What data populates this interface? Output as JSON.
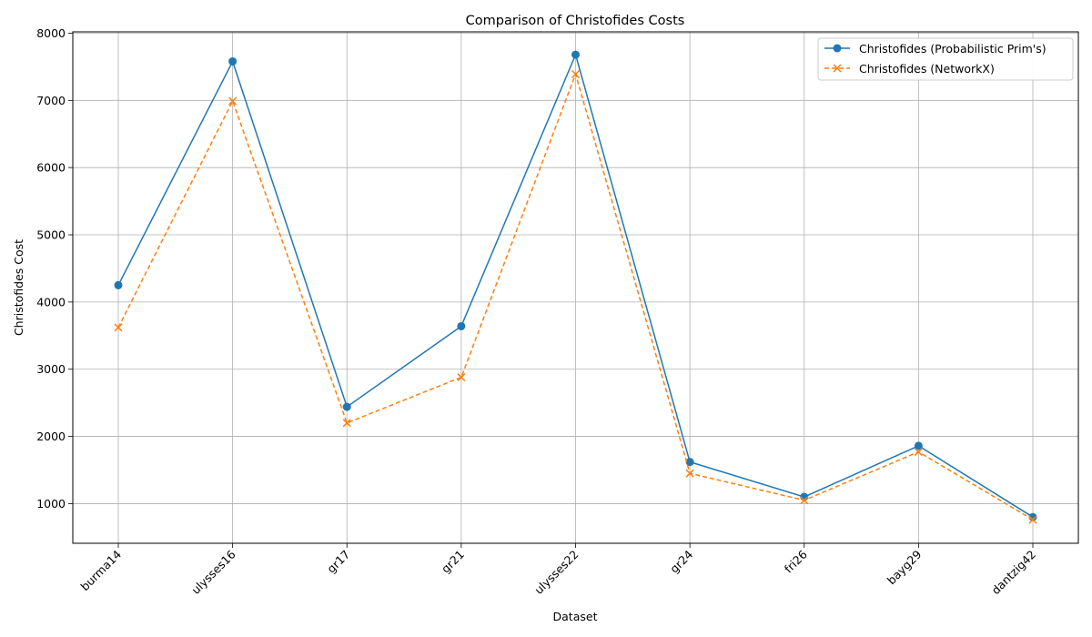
{
  "chart_data": {
    "type": "line",
    "title": "Comparison of Christofides Costs",
    "xlabel": "Dataset",
    "ylabel": "Christofides Cost",
    "categories": [
      "burma14",
      "ulysses16",
      "gr17",
      "gr21",
      "ulysses22",
      "gr24",
      "fri26",
      "bayg29",
      "dantzig42"
    ],
    "ylim": [
      410,
      8020
    ],
    "yticks": [
      1000,
      2000,
      3000,
      4000,
      5000,
      6000,
      7000,
      8000
    ],
    "grid": true,
    "legend_position": "top-right",
    "series": [
      {
        "name": "Christofides (Probabilistic Prim's)",
        "values": [
          4250,
          7580,
          2440,
          3640,
          7680,
          1620,
          1100,
          1860,
          800
        ],
        "color": "#1f77b4",
        "line_style": "solid",
        "marker": "circle"
      },
      {
        "name": "Christofides (NetworkX)",
        "values": [
          3620,
          6990,
          2200,
          2880,
          7390,
          1450,
          1050,
          1770,
          760
        ],
        "color": "#ff7f0e",
        "line_style": "dashed",
        "marker": "x"
      }
    ]
  }
}
